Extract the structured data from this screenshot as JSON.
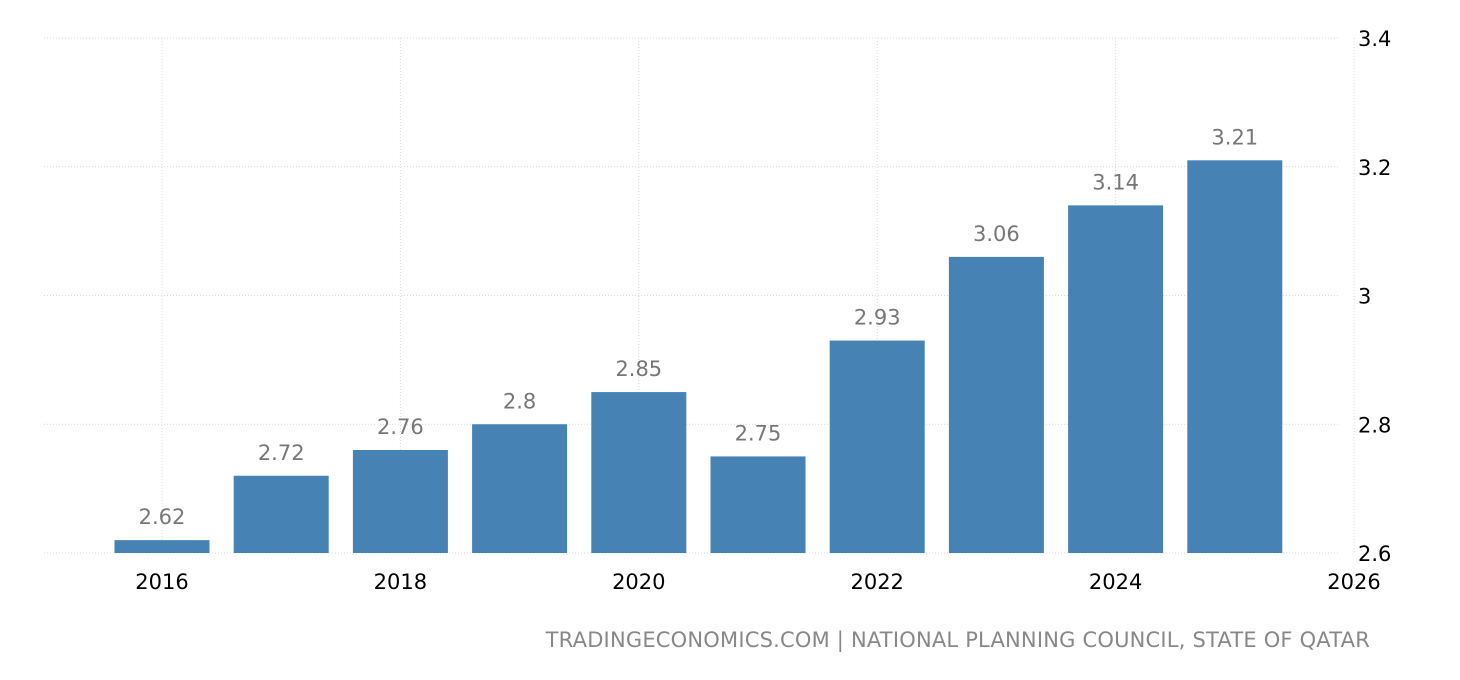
{
  "colors": {
    "bar": "#4682b4",
    "grid": "#d9d9d9",
    "data_label": "#777777",
    "source": "#888888"
  },
  "source_text": "TRADINGECONOMICS.COM | NATIONAL PLANNING COUNCIL, STATE OF QATAR",
  "chart_data": {
    "type": "bar",
    "categories": [
      2016,
      2017,
      2018,
      2019,
      2020,
      2021,
      2022,
      2023,
      2024,
      2025
    ],
    "values": [
      2.62,
      2.72,
      2.76,
      2.8,
      2.85,
      2.75,
      2.93,
      3.06,
      3.14,
      3.21
    ],
    "value_labels": [
      "2.62",
      "2.72",
      "2.76",
      "2.8",
      "2.85",
      "2.75",
      "2.93",
      "3.06",
      "3.14",
      "3.21"
    ],
    "xlim": [
      2016,
      2026
    ],
    "x_ticks": [
      "2016",
      "2018",
      "2020",
      "2022",
      "2024",
      "2026"
    ],
    "ylim": [
      2.6,
      3.4
    ],
    "y_ticks": [
      "2.6",
      "2.8",
      "3",
      "3.2",
      "3.4"
    ],
    "y_axis_side": "right",
    "grid": true,
    "legend": false
  }
}
